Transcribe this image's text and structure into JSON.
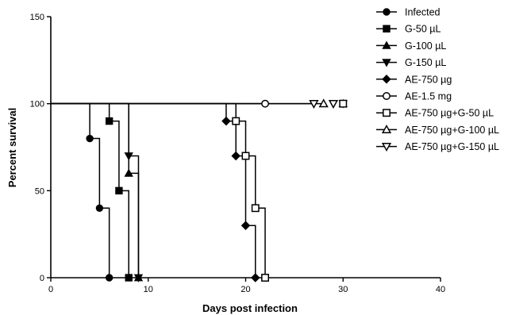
{
  "chart_data": {
    "type": "line",
    "subtype": "kaplan-meier-step",
    "xlabel": "Days post infection",
    "ylabel": "Percent survival",
    "xlim": [
      0,
      40
    ],
    "ylim": [
      0,
      150
    ],
    "x_ticks": [
      "0",
      "10",
      "20",
      "30",
      "40"
    ],
    "y_ticks": [
      "0",
      "50",
      "100",
      "150"
    ],
    "grid": false,
    "legend_position": "top-right",
    "series": [
      {
        "name": "Infected",
        "marker": "filled-circle",
        "x": [
          0,
          4,
          5,
          6
        ],
        "y": [
          100,
          80,
          40,
          0
        ]
      },
      {
        "name": "G-50 µL",
        "marker": "filled-square",
        "x": [
          0,
          6,
          7,
          8
        ],
        "y": [
          100,
          90,
          50,
          0
        ]
      },
      {
        "name": "G-100 µL",
        "marker": "filled-triangle-up",
        "x": [
          0,
          8,
          9
        ],
        "y": [
          100,
          60,
          0
        ]
      },
      {
        "name": "G-150 µL",
        "marker": "filled-triangle-down",
        "x": [
          0,
          8,
          9
        ],
        "y": [
          100,
          70,
          0
        ]
      },
      {
        "name": "AE-750 µg",
        "marker": "filled-diamond",
        "x": [
          0,
          18,
          19,
          20,
          21
        ],
        "y": [
          100,
          90,
          70,
          30,
          0
        ]
      },
      {
        "name": "AE-1.5 mg",
        "marker": "open-circle",
        "x": [
          0,
          22
        ],
        "y": [
          100,
          100
        ],
        "censored_x": [
          22
        ]
      },
      {
        "name": "AE-750 µg+G-50 µL",
        "marker": "open-square",
        "x": [
          0,
          19,
          20,
          21,
          22
        ],
        "y": [
          100,
          90,
          70,
          40,
          0
        ]
      },
      {
        "name": "AE-750 µg+G-100 µL",
        "marker": "open-triangle-up",
        "x": [
          0,
          28
        ],
        "y": [
          100,
          100
        ],
        "censored_x": [
          28
        ]
      },
      {
        "name": "AE-750 µg+G-150 µL",
        "marker": "open-triangle-down",
        "x": [
          0,
          27
        ],
        "y": [
          100,
          100
        ],
        "censored_x": [
          27
        ]
      }
    ],
    "extra_censor_marks": [
      {
        "x": 29,
        "y": 100,
        "marker": "open-triangle-down"
      },
      {
        "x": 30,
        "y": 100,
        "marker": "filled-square"
      },
      {
        "x": 30,
        "y": 100,
        "marker": "filled-triangle-up"
      },
      {
        "x": 30,
        "y": 100,
        "marker": "filled-triangle-down"
      },
      {
        "x": 30,
        "y": 100,
        "marker": "open-square"
      }
    ]
  }
}
